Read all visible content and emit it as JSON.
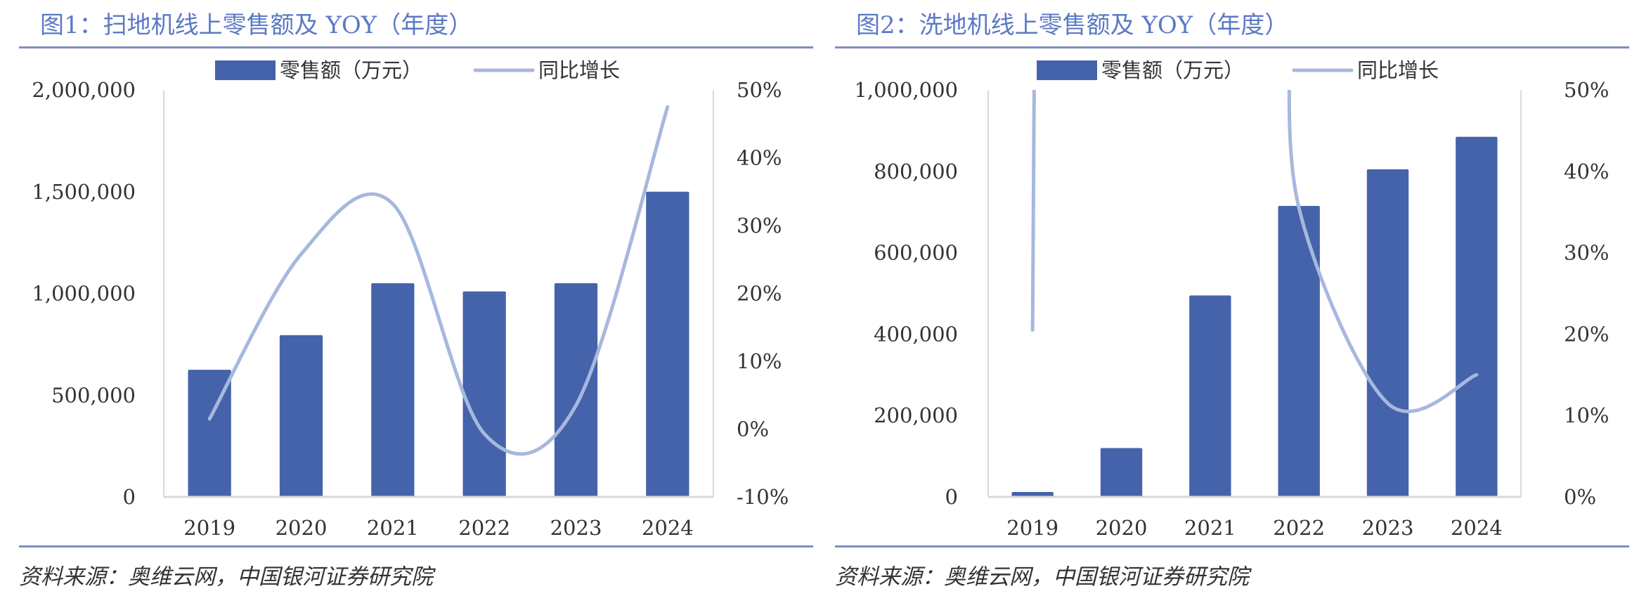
{
  "colors": {
    "bar": "#4463ab",
    "line": "#a7b8de",
    "accent": "#5b79c4",
    "rule": "#7d8fbf"
  },
  "charts": [
    {
      "title": "图1：扫地机线上零售额及 YOY（年度）",
      "source": "资料来源：奥维云网，中国银河证券研究院",
      "legend": {
        "bar_label": "零售额（万元）",
        "line_label": "同比增长"
      }
    },
    {
      "title": "图2：洗地机线上零售额及 YOY（年度）",
      "source": "资料来源：奥维云网，中国银河证券研究院",
      "legend": {
        "bar_label": "零售额（万元）",
        "line_label": "同比增长"
      }
    }
  ],
  "chart_data": [
    {
      "type": "bar",
      "title": "图1：扫地机线上零售额及 YOY（年度）",
      "categories": [
        "2019",
        "2020",
        "2021",
        "2022",
        "2023",
        "2024"
      ],
      "series": [
        {
          "name": "零售额（万元）",
          "type": "bar",
          "axis": "left",
          "values": [
            625000,
            795000,
            1050000,
            1010000,
            1050000,
            1500000
          ]
        },
        {
          "name": "同比增长",
          "type": "line",
          "axis": "right",
          "values": [
            1.5,
            25.8,
            33.2,
            -0.7,
            3.5,
            47.5
          ]
        }
      ],
      "left_axis": {
        "ylim": [
          0,
          2000000
        ],
        "ticks": [
          0,
          500000,
          1000000,
          1500000,
          2000000
        ],
        "tick_labels": [
          "0",
          "500,000",
          "1,000,000",
          "1,500,000",
          "2,000,000"
        ]
      },
      "right_axis": {
        "ylim": [
          -10,
          50
        ],
        "ticks": [
          -10,
          0,
          10,
          20,
          30,
          40,
          50
        ],
        "tick_labels": [
          "-10%",
          "0%",
          "10%",
          "20%",
          "30%",
          "40%",
          "50%"
        ]
      },
      "grid": false,
      "legend_position": "top"
    },
    {
      "type": "bar",
      "title": "图2：洗地机线上零售额及 YOY（年度）",
      "categories": [
        "2019",
        "2020",
        "2021",
        "2022",
        "2023",
        "2024"
      ],
      "series": [
        {
          "name": "零售额（万元）",
          "type": "bar",
          "axis": "left",
          "values": [
            12000,
            120000,
            495000,
            715000,
            805000,
            885000
          ]
        },
        {
          "name": "同比增长",
          "type": "line",
          "axis": "right",
          "values": [
            20.5,
            null,
            null,
            35.5,
            11.5,
            15.0
          ]
        }
      ],
      "left_axis": {
        "ylim": [
          0,
          1000000
        ],
        "ticks": [
          0,
          200000,
          400000,
          600000,
          800000,
          1000000
        ],
        "tick_labels": [
          "0",
          "200,000",
          "400,000",
          "600,000",
          "800,000",
          "1,000,000"
        ]
      },
      "right_axis": {
        "ylim": [
          0,
          50
        ],
        "ticks": [
          0,
          10,
          20,
          30,
          40,
          50
        ],
        "tick_labels": [
          "0%",
          "10%",
          "20%",
          "30%",
          "40%",
          "50%"
        ]
      },
      "grid": false,
      "legend_position": "top"
    }
  ]
}
